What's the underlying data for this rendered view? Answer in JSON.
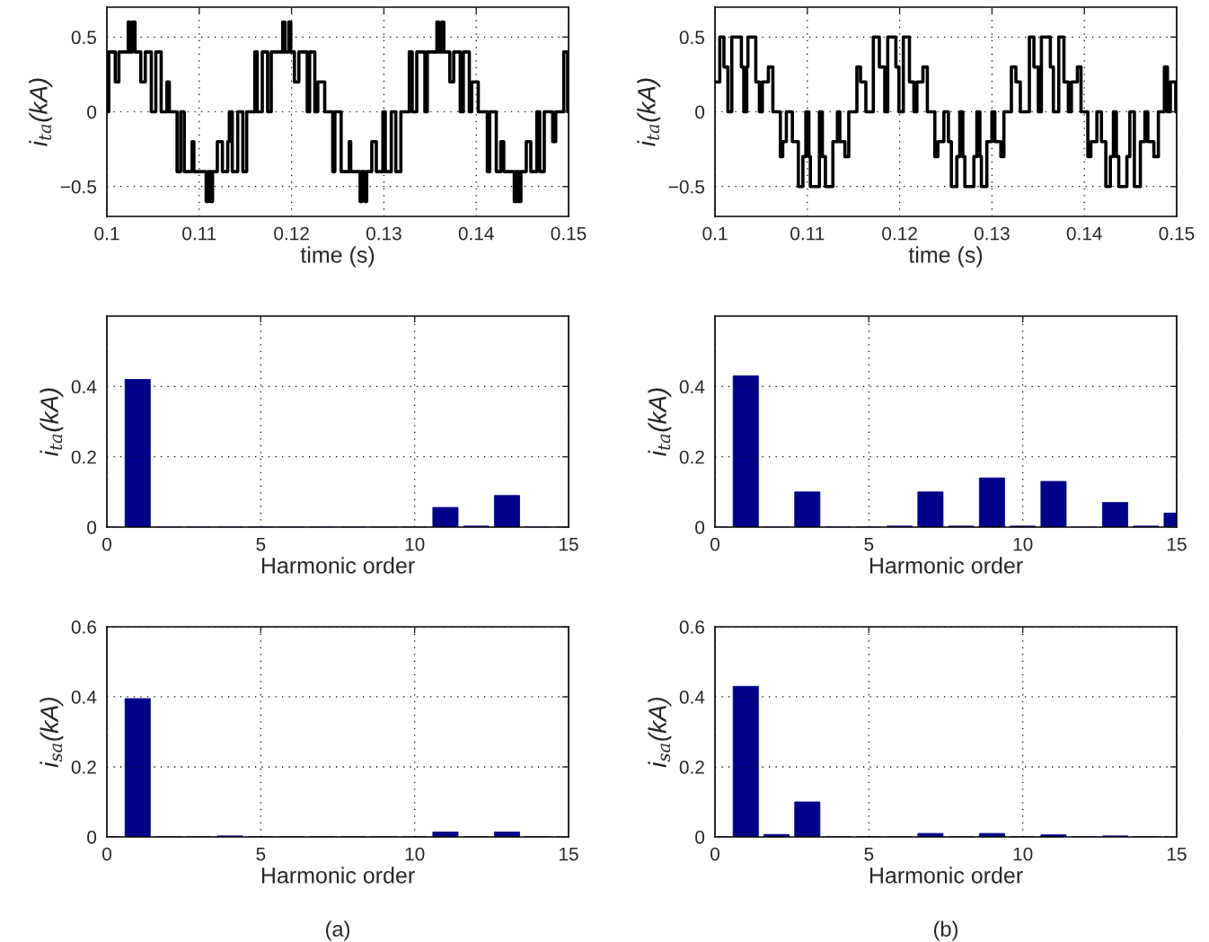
{
  "chart_data": [
    {
      "type": "step",
      "xlabel": "time (s)",
      "ylabel": "i$_{ta}$(kA)",
      "color": "#000000",
      "grid": true,
      "xlim": [
        0.1,
        0.15
      ],
      "ylim": [
        -0.7,
        0.7
      ],
      "xticks": [
        0.1,
        0.11,
        0.12,
        0.13,
        0.14,
        0.15
      ],
      "yticks": [
        {
          "value": -0.5,
          "label": "−0.5"
        },
        0,
        0.5
      ],
      "x": [
        0.1,
        0.1002,
        0.10091,
        0.1013,
        0.10231,
        0.10247,
        0.10276,
        0.10305,
        0.10367,
        0.10416,
        0.10481,
        0.1053,
        0.10588,
        0.1065,
        0.10676,
        0.1076,
        0.10799,
        0.10838,
        0.10923,
        0.10942,
        0.11075,
        0.11098,
        0.11124,
        0.11144,
        0.11196,
        0.11251,
        0.11309,
        0.11326,
        0.11358,
        0.11417,
        0.11472,
        0.11514,
        0.11602,
        0.11628,
        0.11683,
        0.11741,
        0.1178,
        0.11904,
        0.11927,
        0.11969,
        0.11992,
        0.12031,
        0.12079,
        0.1217,
        0.12196,
        0.12252,
        0.12284,
        0.12359,
        0.12446,
        0.12469,
        0.12537,
        0.12625,
        0.12641,
        0.12742,
        0.12762,
        0.12794,
        0.12814,
        0.12869,
        0.12918,
        0.12989,
        0.13015,
        0.1308,
        0.13129,
        0.13184,
        0.13275,
        0.13307,
        0.13356,
        0.13444,
        0.1347,
        0.13574,
        0.13593,
        0.13626,
        0.13649,
        0.13714,
        0.13756,
        0.13827,
        0.1386,
        0.13925,
        0.13951,
        0.14022,
        0.1412,
        0.14146,
        0.14217,
        0.14266,
        0.14298,
        0.14412,
        0.14435,
        0.14461,
        0.14484,
        0.14542,
        0.14591,
        0.14656,
        0.14688,
        0.14737,
        0.14828,
        0.14861,
        0.14948,
        0.1499,
        0.15
      ],
      "values": [
        0,
        0.4,
        0.2,
        0.4,
        0.6,
        0.4,
        0.6,
        0.4,
        0.2,
        0.4,
        0,
        0.4,
        0,
        0.2,
        0,
        -0.4,
        0,
        -0.4,
        -0.2,
        -0.4,
        -0.6,
        -0.4,
        -0.6,
        -0.4,
        -0.2,
        -0.4,
        -0.2,
        0,
        -0.4,
        0,
        -0.4,
        0,
        0.4,
        0,
        0.4,
        0,
        0.4,
        0.6,
        0.4,
        0.6,
        0.4,
        0.2,
        0.4,
        0,
        0.4,
        0,
        0.2,
        0,
        -0.4,
        0,
        -0.4,
        -0.2,
        -0.4,
        -0.6,
        -0.4,
        -0.6,
        -0.4,
        -0.2,
        -0.4,
        0,
        -0.4,
        0,
        -0.4,
        0,
        0.4,
        0,
        0.4,
        0,
        0.4,
        0.6,
        0.4,
        0.6,
        0.4,
        0.2,
        0.4,
        0,
        0.4,
        0,
        0.2,
        0,
        -0.4,
        0,
        -0.4,
        -0.2,
        -0.4,
        -0.6,
        -0.4,
        -0.6,
        -0.4,
        -0.2,
        -0.4,
        0,
        -0.4,
        0,
        -0.2,
        0,
        0.4,
        0,
        0
      ]
    },
    {
      "type": "step",
      "xlabel": "time (s)",
      "ylabel": "i$_{ta}$(kA)",
      "color": "#000000",
      "grid": true,
      "xlim": [
        0.1,
        0.15
      ],
      "ylim": [
        -0.7,
        0.7
      ],
      "xticks": [
        0.1,
        0.11,
        0.12,
        0.13,
        0.14,
        0.15
      ],
      "yticks": [
        {
          "value": -0.5,
          "label": "−0.5"
        },
        0,
        0.5
      ],
      "x": [
        0.1,
        0.10052,
        0.10097,
        0.1014,
        0.10182,
        0.10286,
        0.10312,
        0.10344,
        0.10357,
        0.10442,
        0.10481,
        0.10513,
        0.10578,
        0.10627,
        0.10708,
        0.10734,
        0.10773,
        0.10838,
        0.10903,
        0.10952,
        0.10984,
        0.11017,
        0.11033,
        0.11131,
        0.11163,
        0.11196,
        0.11277,
        0.11326,
        0.11352,
        0.11407,
        0.11449,
        0.11537,
        0.11576,
        0.11634,
        0.11715,
        0.1178,
        0.11839,
        0.11871,
        0.11959,
        0.11992,
        0.1204,
        0.12106,
        0.12154,
        0.12187,
        0.12252,
        0.123,
        0.12381,
        0.12414,
        0.12479,
        0.12528,
        0.1256,
        0.12619,
        0.12651,
        0.12684,
        0.12706,
        0.12804,
        0.12836,
        0.12869,
        0.12885,
        0.12944,
        0.12999,
        0.13031,
        0.13096,
        0.13129,
        0.1321,
        0.13259,
        0.13307,
        0.13405,
        0.13454,
        0.13502,
        0.13535,
        0.13632,
        0.13665,
        0.13723,
        0.13779,
        0.13827,
        0.1386,
        0.13925,
        0.13964,
        0.14038,
        0.14071,
        0.14136,
        0.14185,
        0.14233,
        0.14282,
        0.14315,
        0.14347,
        0.14373,
        0.14461,
        0.14493,
        0.14542,
        0.14607,
        0.14656,
        0.14688,
        0.14753,
        0.14802,
        0.14867,
        0.149,
        0.14932,
        0.1499,
        0.15
      ],
      "values": [
        0.2,
        0.5,
        0.3,
        0,
        0.5,
        0.3,
        0,
        0.3,
        0.5,
        0.2,
        0,
        0.2,
        0.3,
        0,
        -0.3,
        -0.2,
        0,
        -0.2,
        -0.5,
        -0.3,
        0,
        -0.3,
        -0.5,
        0,
        -0.3,
        -0.5,
        -0.2,
        0,
        -0.2,
        -0.3,
        0,
        0.3,
        0.2,
        0,
        0.5,
        0.3,
        0,
        0.5,
        0.3,
        0,
        0.5,
        0.2,
        0,
        0.2,
        0.3,
        0,
        -0.3,
        -0.2,
        0,
        -0.2,
        -0.5,
        -0.3,
        0,
        -0.3,
        -0.5,
        -0.3,
        0,
        -0.3,
        -0.5,
        -0.2,
        0,
        -0.2,
        -0.3,
        0,
        0.3,
        0.2,
        0,
        0.5,
        0.3,
        0,
        0.5,
        0.3,
        0,
        0.5,
        0.2,
        0,
        0.2,
        0.3,
        0,
        -0.3,
        -0.2,
        0,
        -0.2,
        -0.5,
        -0.3,
        0,
        -0.3,
        -0.5,
        -0.3,
        0,
        -0.5,
        -0.2,
        0,
        -0.2,
        -0.3,
        0,
        0.3,
        0,
        0.2,
        0,
        0
      ]
    },
    {
      "type": "bar",
      "xlabel": "Harmonic order",
      "ylabel": "i$_{ta}$(kA)",
      "color": "#00008b",
      "grid": true,
      "xlim": [
        0,
        15
      ],
      "ylim": [
        0,
        0.6
      ],
      "xticks": [
        0,
        5,
        10,
        15
      ],
      "yticks": [
        0,
        0.2,
        0.4
      ],
      "x": [
        0,
        1,
        2,
        3,
        4,
        5,
        6,
        7,
        8,
        9,
        10,
        11,
        12,
        13,
        14,
        15
      ],
      "values": [
        0,
        0.42,
        0,
        0,
        0,
        0,
        0,
        0,
        0,
        0,
        0,
        0.056,
        0.003,
        0.09,
        0,
        0
      ]
    },
    {
      "type": "bar",
      "xlabel": "Harmonic order",
      "ylabel": "i$_{ta}$(kA)",
      "color": "#00008b",
      "grid": true,
      "xlim": [
        0,
        15
      ],
      "ylim": [
        0,
        0.6
      ],
      "xticks": [
        0,
        5,
        10,
        15
      ],
      "yticks": [
        0,
        0.2,
        0.4
      ],
      "x": [
        0,
        1,
        2,
        3,
        4,
        5,
        6,
        7,
        8,
        9,
        10,
        11,
        12,
        13,
        14,
        15
      ],
      "values": [
        0,
        0.43,
        0,
        0.1,
        0,
        0,
        0.003,
        0.1,
        0.003,
        0.14,
        0.003,
        0.13,
        0,
        0.07,
        0.003,
        0.04
      ]
    },
    {
      "type": "bar",
      "xlabel": "Harmonic order",
      "ylabel": "i$_{sa}$(kA)",
      "color": "#00008b",
      "grid": true,
      "xlim": [
        0,
        15
      ],
      "ylim": [
        0,
        0.6
      ],
      "xticks": [
        0,
        5,
        10,
        15
      ],
      "yticks": [
        0,
        0.2,
        0.4,
        0.6
      ],
      "annotations": [
        "(a)"
      ],
      "x": [
        0,
        1,
        2,
        3,
        4,
        5,
        6,
        7,
        8,
        9,
        10,
        11,
        12,
        13,
        14,
        15
      ],
      "values": [
        0,
        0.395,
        0,
        0,
        0.003,
        0,
        0,
        0,
        0,
        0,
        0,
        0.014,
        0,
        0.014,
        0,
        0
      ]
    },
    {
      "type": "bar",
      "xlabel": "Harmonic order",
      "ylabel": "i$_{sa}$(kA)",
      "color": "#00008b",
      "grid": true,
      "xlim": [
        0,
        15
      ],
      "ylim": [
        0,
        0.6
      ],
      "xticks": [
        0,
        5,
        10,
        15
      ],
      "yticks": [
        0,
        0.2,
        0.4,
        0.6
      ],
      "annotations": [
        "(b)"
      ],
      "x": [
        0,
        1,
        2,
        3,
        4,
        5,
        6,
        7,
        8,
        9,
        10,
        11,
        12,
        13,
        14,
        15
      ],
      "values": [
        0,
        0.43,
        0.007,
        0.1,
        0,
        0,
        0,
        0.01,
        0,
        0.01,
        0,
        0.006,
        0,
        0.003,
        0,
        0
      ]
    }
  ]
}
